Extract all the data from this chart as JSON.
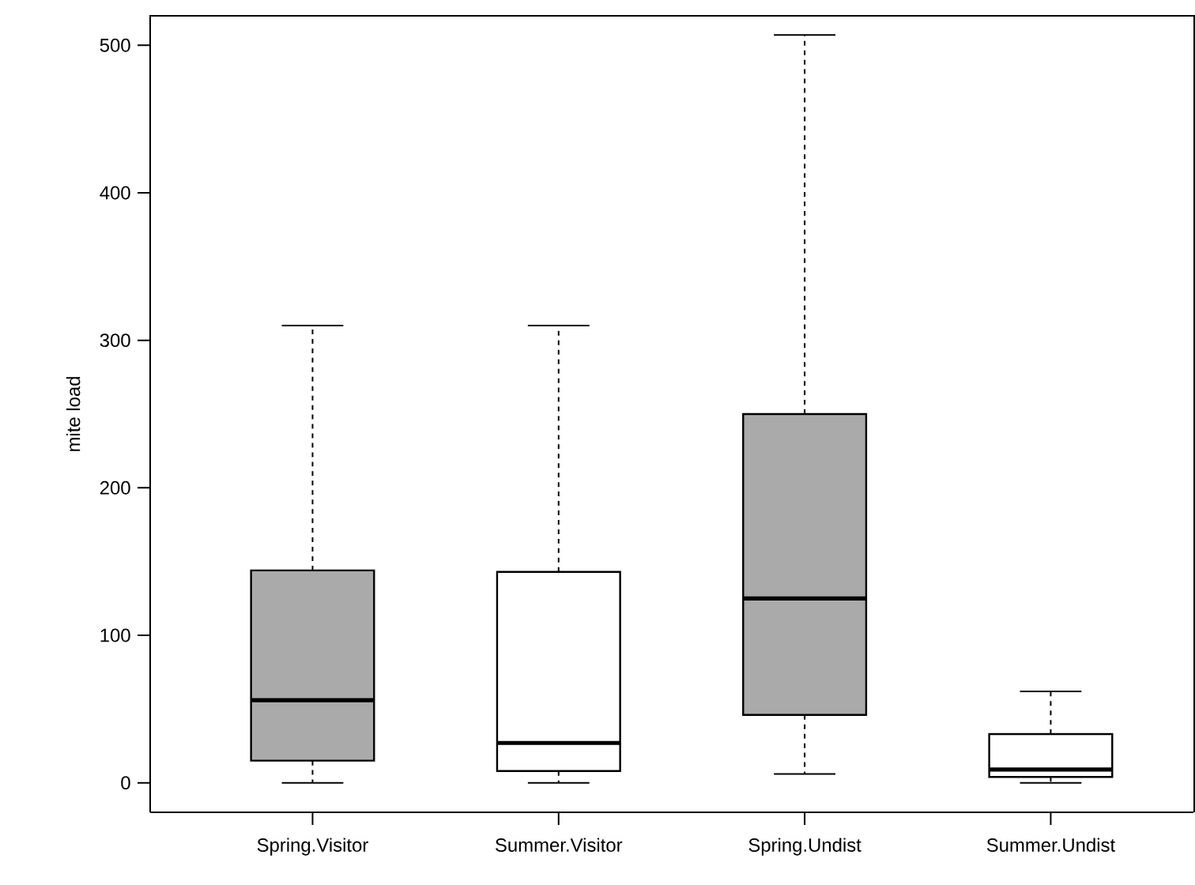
{
  "chart_data": {
    "type": "box",
    "ylabel": "mite load",
    "categories": [
      "Spring.Visitor",
      "Summer.Visitor",
      "Spring.Undist",
      "Summer.Undist"
    ],
    "colors": [
      "#aaaaaa",
      "#ffffff",
      "#aaaaaa",
      "#ffffff"
    ],
    "boxes": [
      {
        "low": 0,
        "q1": 15,
        "median": 56,
        "q3": 144,
        "high": 310
      },
      {
        "low": 0,
        "q1": 8,
        "median": 27,
        "q3": 143,
        "high": 310
      },
      {
        "low": 6,
        "q1": 46,
        "median": 125,
        "q3": 250,
        "high": 507
      },
      {
        "low": 0,
        "q1": 4,
        "median": 9,
        "q3": 33,
        "high": 62
      }
    ],
    "ylim": [
      -20,
      520
    ],
    "yticks": [
      0,
      100,
      200,
      300,
      400,
      500
    ]
  }
}
